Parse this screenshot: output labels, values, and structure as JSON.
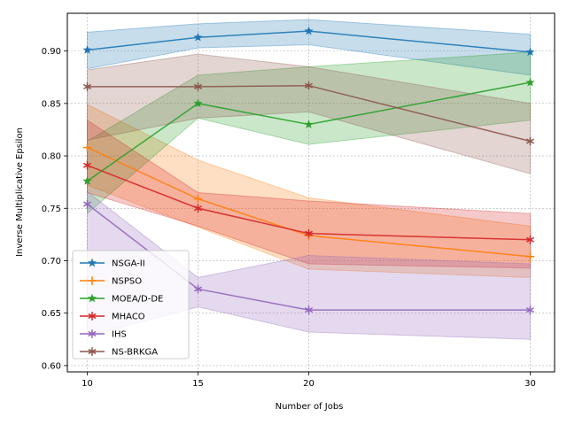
{
  "chart_data": {
    "type": "line",
    "title": "",
    "xlabel": "Number of Jobs",
    "ylabel": "Inverse Multiplicative Epsilon",
    "x": [
      10,
      15,
      20,
      30
    ],
    "xticks": [
      "10",
      "15",
      "20",
      "30"
    ],
    "yticks": [
      "0.60",
      "0.65",
      "0.70",
      "0.75",
      "0.80",
      "0.85",
      "0.90"
    ],
    "xlim": [
      9.1,
      31.1
    ],
    "ylim": [
      0.594,
      0.936
    ],
    "grid": true,
    "legend_position": "lower-left",
    "series": [
      {
        "name": "NSGA-II",
        "color": "#1f77b4",
        "marker": "star",
        "values": [
          0.901,
          0.913,
          0.919,
          0.899
        ],
        "lower": [
          0.883,
          0.903,
          0.906,
          0.877
        ],
        "upper": [
          0.918,
          0.926,
          0.93,
          0.916
        ]
      },
      {
        "name": "NSPSO",
        "color": "#ff7f0e",
        "marker": "plus",
        "values": [
          0.808,
          0.759,
          0.724,
          0.704
        ],
        "lower": [
          0.772,
          0.732,
          0.692,
          0.684
        ],
        "upper": [
          0.849,
          0.796,
          0.76,
          0.733
        ]
      },
      {
        "name": "MOEA/D-DE",
        "color": "#2ca02c",
        "marker": "star",
        "values": [
          0.776,
          0.85,
          0.83,
          0.87
        ],
        "lower": [
          0.745,
          0.836,
          0.811,
          0.834
        ],
        "upper": [
          0.814,
          0.877,
          0.885,
          0.899
        ]
      },
      {
        "name": "MHACO",
        "color": "#d62728",
        "marker": "asterisk",
        "values": [
          0.791,
          0.75,
          0.726,
          0.72
        ],
        "lower": [
          0.765,
          0.733,
          0.697,
          0.693
        ],
        "upper": [
          0.834,
          0.765,
          0.757,
          0.745
        ]
      },
      {
        "name": "IHS",
        "color": "#9467bd",
        "marker": "asterisk",
        "values": [
          0.754,
          0.673,
          0.653,
          0.653
        ],
        "lower": [
          0.628,
          0.656,
          0.632,
          0.625
        ],
        "upper": [
          0.766,
          0.684,
          0.705,
          0.697
        ]
      },
      {
        "name": "NS-BRKGA",
        "color": "#8c564b",
        "marker": "asterisk",
        "values": [
          0.866,
          0.866,
          0.867,
          0.814
        ],
        "lower": [
          0.815,
          0.836,
          0.842,
          0.783
        ],
        "upper": [
          0.882,
          0.897,
          0.885,
          0.85
        ]
      }
    ]
  }
}
